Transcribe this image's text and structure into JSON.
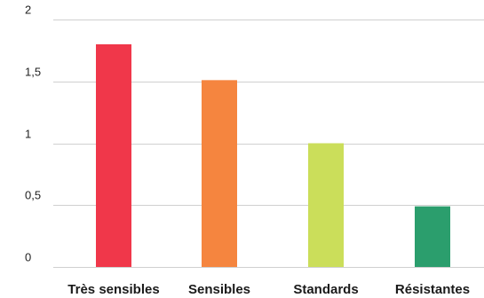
{
  "chart_data": {
    "type": "bar",
    "title": "",
    "xlabel": "",
    "ylabel": "",
    "categories": [
      "Très sensibles",
      "Sensibles",
      "Standards",
      "Résistantes"
    ],
    "values": [
      1.8,
      1.51,
      1.0,
      0.49
    ],
    "colors": [
      "#f0374a",
      "#f5853f",
      "#cbde5a",
      "#2b9e6d"
    ],
    "ylim": [
      0,
      2
    ],
    "yticks": [
      0,
      0.5,
      1,
      1.5,
      2
    ],
    "ytick_labels": [
      "0",
      "0,5",
      "1",
      "1,5",
      "2"
    ],
    "grid": true,
    "legend": "none"
  }
}
